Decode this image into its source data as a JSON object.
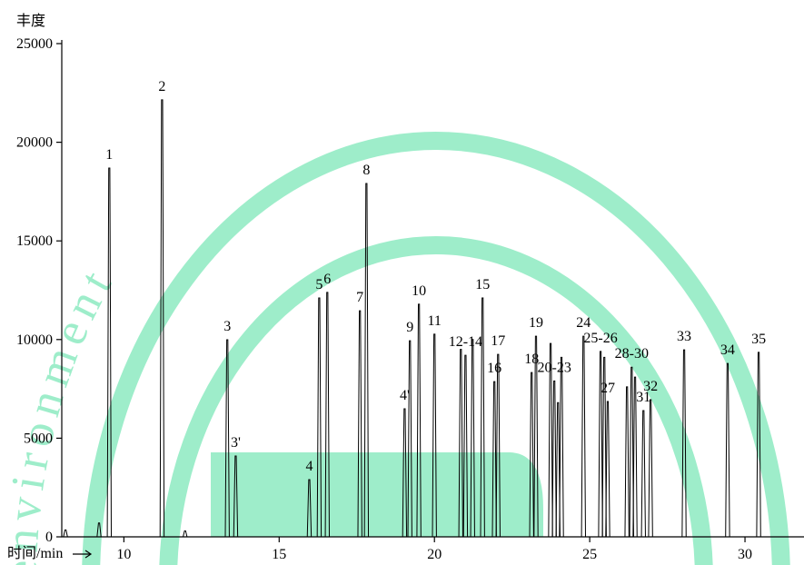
{
  "chart_data": {
    "type": "chromatogram",
    "watermark": "environment",
    "y_label": "丰度",
    "x_label": "时间/min",
    "xlim": [
      8,
      31.9
    ],
    "ylim": [
      0,
      25000
    ],
    "xticks": [
      10,
      15,
      20,
      25,
      30
    ],
    "yticks": [
      0,
      5000,
      10000,
      15000,
      20000,
      25000
    ],
    "color": "#000000",
    "peaks": [
      {
        "label": null,
        "x": 8.12,
        "height": 350
      },
      {
        "label": null,
        "x": 9.2,
        "height": 700
      },
      {
        "label": "1",
        "x": 9.53,
        "height": 18690
      },
      {
        "label": "2",
        "x": 11.23,
        "height": 22150
      },
      {
        "label": null,
        "x": 11.97,
        "height": 300
      },
      {
        "label": "3",
        "x": 13.33,
        "height": 9990
      },
      {
        "label": "3'",
        "x": 13.6,
        "height": 4100
      },
      {
        "label": "4",
        "x": 15.97,
        "height": 2900
      },
      {
        "label": "5",
        "x": 16.29,
        "height": 12110
      },
      {
        "label": "6",
        "x": 16.55,
        "height": 12390
      },
      {
        "label": "7",
        "x": 17.6,
        "height": 11460
      },
      {
        "label": "8",
        "x": 17.81,
        "height": 17910
      },
      {
        "label": "4'",
        "x": 19.04,
        "height": 6490
      },
      {
        "label": "9",
        "x": 19.21,
        "height": 9940
      },
      {
        "label": "10",
        "x": 19.5,
        "height": 11790
      },
      {
        "label": "11",
        "x": 20.0,
        "height": 10270
      },
      {
        "label": null,
        "x": 20.85,
        "height": 9500
      },
      {
        "label": "12-14",
        "x": 21.0,
        "height": 9200
      },
      {
        "label": null,
        "x": 21.23,
        "height": 10000
      },
      {
        "label": "15",
        "x": 21.55,
        "height": 12110
      },
      {
        "label": "16",
        "x": 21.93,
        "height": 7870
      },
      {
        "label": "17",
        "x": 22.05,
        "height": 9250
      },
      {
        "label": "18",
        "x": 23.13,
        "height": 8330
      },
      {
        "label": "19",
        "x": 23.27,
        "height": 10170
      },
      {
        "label": null,
        "x": 23.74,
        "height": 9800
      },
      {
        "label": "20-23",
        "x": 23.86,
        "height": 7900
      },
      {
        "label": null,
        "x": 23.98,
        "height": 6800
      },
      {
        "label": null,
        "x": 24.09,
        "height": 9100
      },
      {
        "label": "24",
        "x": 24.8,
        "height": 10170
      },
      {
        "label": "25-26",
        "x": 25.35,
        "height": 9400
      },
      {
        "label": null,
        "x": 25.47,
        "height": 9100
      },
      {
        "label": "27",
        "x": 25.58,
        "height": 6860
      },
      {
        "label": null,
        "x": 26.2,
        "height": 7600
      },
      {
        "label": "28-30",
        "x": 26.35,
        "height": 8600
      },
      {
        "label": null,
        "x": 26.46,
        "height": 8100
      },
      {
        "label": "31",
        "x": 26.73,
        "height": 6400
      },
      {
        "label": "32",
        "x": 26.96,
        "height": 6950
      },
      {
        "label": "33",
        "x": 28.04,
        "height": 9480
      },
      {
        "label": "34",
        "x": 29.44,
        "height": 8790
      },
      {
        "label": "35",
        "x": 30.44,
        "height": 9350
      }
    ]
  }
}
